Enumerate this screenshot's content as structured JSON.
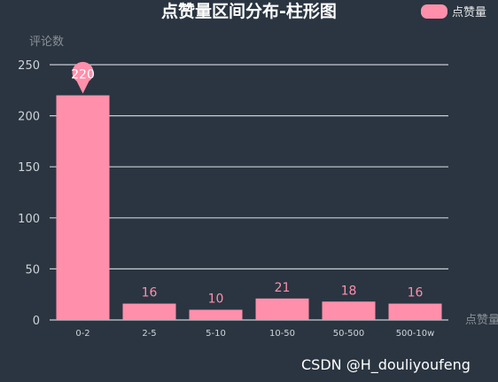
{
  "chart_data": {
    "type": "bar",
    "title": "点赞量区间分布-柱形图",
    "xlabel": "点赞量",
    "ylabel": "评论数",
    "categories": [
      "0-2",
      "2-5",
      "5-10",
      "10-50",
      "50-500",
      "500-10w"
    ],
    "series": [
      {
        "name": "点赞量",
        "values": [
          220,
          16,
          10,
          21,
          18,
          16
        ]
      }
    ],
    "ylim": [
      0,
      250
    ],
    "yticks": [
      0,
      50,
      100,
      150,
      200,
      250
    ],
    "max_marker": {
      "category": "0-2",
      "value": 220
    },
    "grid": true,
    "legend_position": "top-right",
    "colors": {
      "background": "#2a3541",
      "bar": "#ff8fab",
      "grid": "#c9ced4",
      "axis": "#c9ced4"
    }
  },
  "watermark": "CSDN @H_douliyoufeng"
}
